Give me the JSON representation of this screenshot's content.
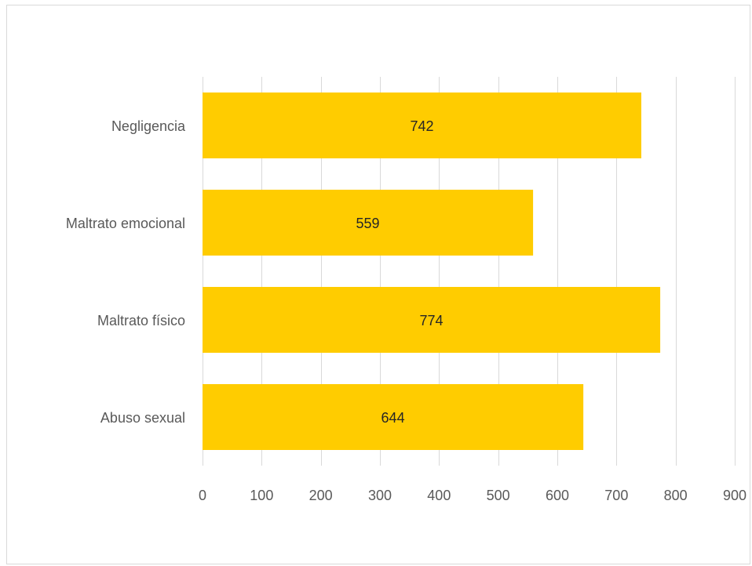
{
  "chart_data": {
    "type": "bar",
    "orientation": "horizontal",
    "categories": [
      "Negligencia",
      "Maltrato emocional",
      "Maltrato físico",
      "Abuso sexual"
    ],
    "values": [
      742,
      559,
      774,
      644
    ],
    "data_labels": [
      "742",
      "559",
      "774",
      "644"
    ],
    "xlim": [
      0,
      900
    ],
    "x_ticks": [
      0,
      100,
      200,
      300,
      400,
      500,
      600,
      700,
      800,
      900
    ],
    "x_tick_labels": [
      "0",
      "100",
      "200",
      "300",
      "400",
      "500",
      "600",
      "700",
      "800",
      "900"
    ],
    "title": "",
    "xlabel": "",
    "ylabel": "",
    "grid": "vertical",
    "legend": "none",
    "bar_color": "#FFCC00",
    "grid_color": "#d9d9d9",
    "text_color": "#595959"
  }
}
